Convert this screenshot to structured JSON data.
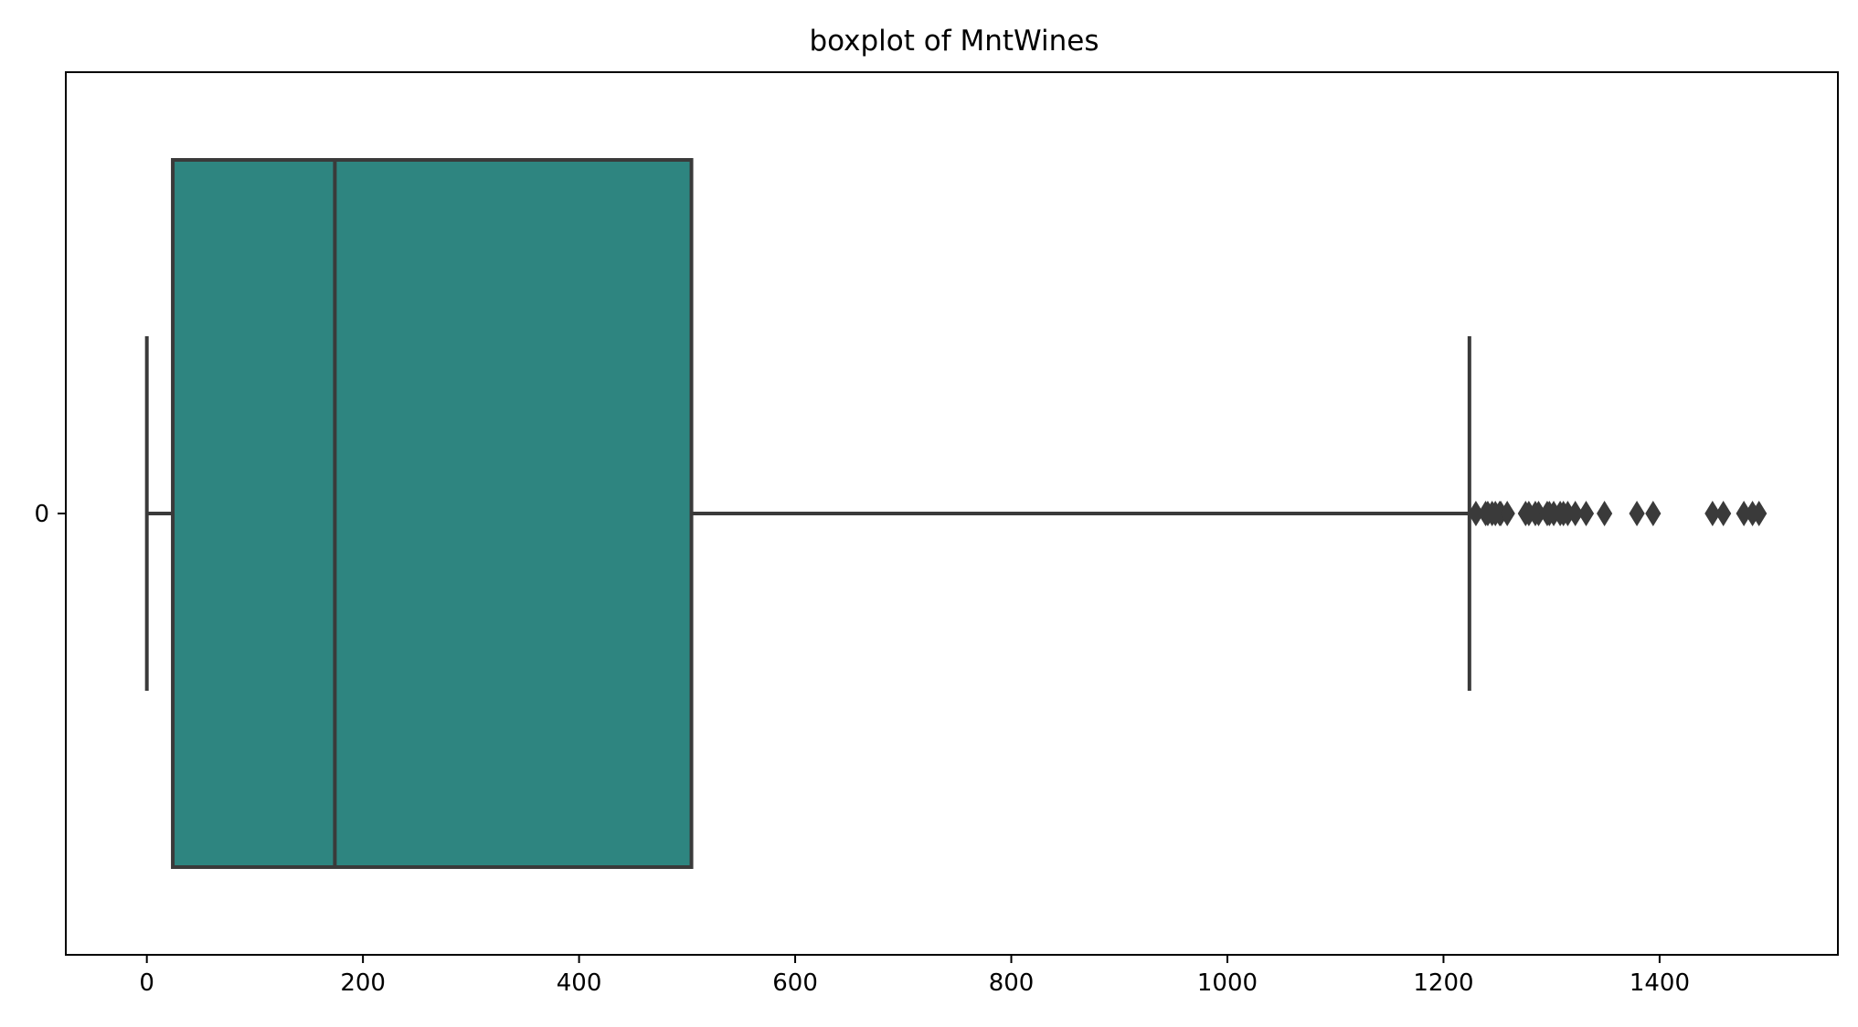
{
  "chart_data": {
    "type": "boxplot",
    "title": "boxplot of MntWines",
    "xlabel": "",
    "ylabel": "",
    "xlim": [
      -75,
      1565
    ],
    "xticks": [
      0,
      200,
      400,
      600,
      800,
      1000,
      1200,
      1400
    ],
    "categories": [
      "0"
    ],
    "box": {
      "whisker_low": 0,
      "q1": 24,
      "median": 174,
      "q3": 504,
      "whisker_high": 1224
    },
    "outliers": [
      1230,
      1239,
      1241,
      1245,
      1248,
      1252,
      1253,
      1259,
      1276,
      1279,
      1285,
      1288,
      1296,
      1298,
      1302,
      1308,
      1311,
      1315,
      1322,
      1332,
      1349,
      1379,
      1394,
      1449,
      1459,
      1478,
      1486,
      1492
    ],
    "grid": false,
    "colors": {
      "box_fill": "#2e8580",
      "line": "#3a3a3a",
      "axes": "#000000"
    }
  }
}
